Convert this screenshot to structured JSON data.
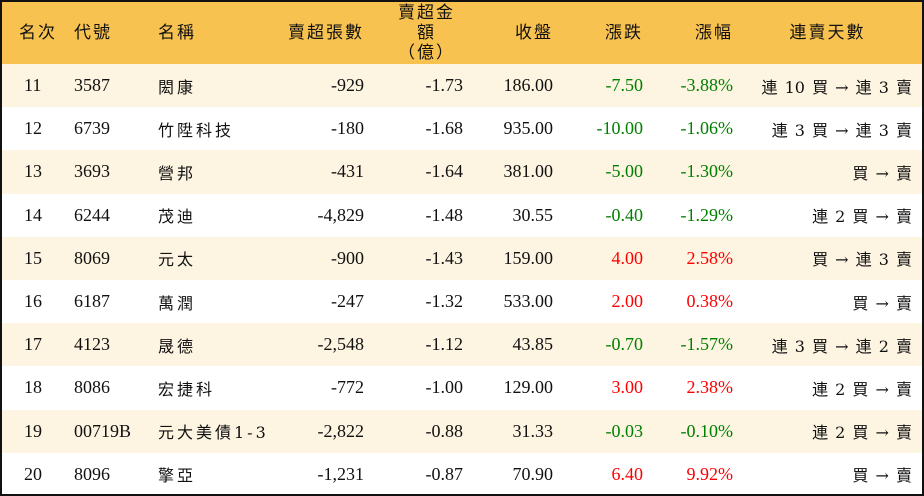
{
  "colors": {
    "header_bg": "#F8C250",
    "odd_row_bg": "#FDF4E1",
    "up": "#FF0000",
    "down": "#008000"
  },
  "headers": {
    "rank": "名次",
    "code": "代號",
    "name": "名稱",
    "net_sell_lots": "賣超張數",
    "net_sell_amount_l1": "賣超金額",
    "net_sell_amount_l2": "（億）",
    "close": "收盤",
    "change": "漲跌",
    "change_pct": "漲幅",
    "streak": "連賣天數"
  },
  "rows": [
    {
      "rank": "11",
      "code": "3587",
      "name": "閎康",
      "lots": "-929",
      "amount": "-1.73",
      "close": "186.00",
      "change": "-7.50",
      "pct": "-3.88%",
      "dir": "down",
      "streak": "連 10 買 → 連 3 賣"
    },
    {
      "rank": "12",
      "code": "6739",
      "name": "竹陞科技",
      "lots": "-180",
      "amount": "-1.68",
      "close": "935.00",
      "change": "-10.00",
      "pct": "-1.06%",
      "dir": "down",
      "streak": "連 3 買 → 連 3 賣"
    },
    {
      "rank": "13",
      "code": "3693",
      "name": "營邦",
      "lots": "-431",
      "amount": "-1.64",
      "close": "381.00",
      "change": "-5.00",
      "pct": "-1.30%",
      "dir": "down",
      "streak": "買 → 賣"
    },
    {
      "rank": "14",
      "code": "6244",
      "name": "茂迪",
      "lots": "-4,829",
      "amount": "-1.48",
      "close": "30.55",
      "change": "-0.40",
      "pct": "-1.29%",
      "dir": "down",
      "streak": "連 2 買 → 賣"
    },
    {
      "rank": "15",
      "code": "8069",
      "name": "元太",
      "lots": "-900",
      "amount": "-1.43",
      "close": "159.00",
      "change": "4.00",
      "pct": "2.58%",
      "dir": "up",
      "streak": "買 → 連 3 賣"
    },
    {
      "rank": "16",
      "code": "6187",
      "name": "萬潤",
      "lots": "-247",
      "amount": "-1.32",
      "close": "533.00",
      "change": "2.00",
      "pct": "0.38%",
      "dir": "up",
      "streak": "買 → 賣"
    },
    {
      "rank": "17",
      "code": "4123",
      "name": "晟德",
      "lots": "-2,548",
      "amount": "-1.12",
      "close": "43.85",
      "change": "-0.70",
      "pct": "-1.57%",
      "dir": "down",
      "streak": "連 3 買 → 連 2 賣"
    },
    {
      "rank": "18",
      "code": "8086",
      "name": "宏捷科",
      "lots": "-772",
      "amount": "-1.00",
      "close": "129.00",
      "change": "3.00",
      "pct": "2.38%",
      "dir": "up",
      "streak": "連 2 買 → 賣"
    },
    {
      "rank": "19",
      "code": "00719B",
      "name": "元大美債1-3",
      "lots": "-2,822",
      "amount": "-0.88",
      "close": "31.33",
      "change": "-0.03",
      "pct": "-0.10%",
      "dir": "down",
      "streak": "連 2 買 → 賣"
    },
    {
      "rank": "20",
      "code": "8096",
      "name": "擎亞",
      "lots": "-1,231",
      "amount": "-0.87",
      "close": "70.90",
      "change": "6.40",
      "pct": "9.92%",
      "dir": "up",
      "streak": "買 → 賣"
    }
  ]
}
